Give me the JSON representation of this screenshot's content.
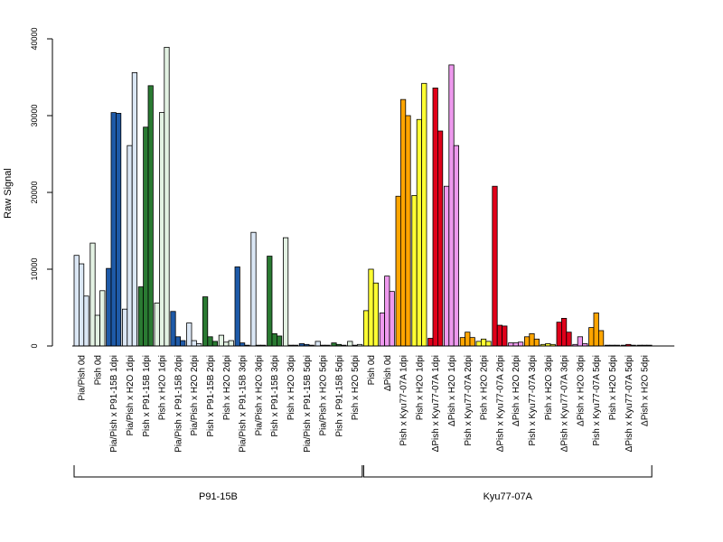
{
  "chart_data": {
    "type": "bar",
    "ylabel": "Raw Signal",
    "ylim": [
      0,
      40000
    ],
    "yticks": [
      0,
      10000,
      20000,
      30000,
      40000
    ],
    "grid": false,
    "groups": [
      {
        "name": "P91-15B",
        "categories": [
          {
            "label": "Pia/Pish 0d",
            "color": "#dbe7f5",
            "values": [
              11800,
              10700,
              6500
            ]
          },
          {
            "label": "Pish 0d",
            "color": "#e3f2e3",
            "values": [
              13400,
              4000,
              7200
            ]
          },
          {
            "label": "Pia/Pish x P91-15B 1dpi",
            "color": "#1e5aa8",
            "values": [
              10100,
              30400,
              30300
            ]
          },
          {
            "label": "Pia/Pish x H2O 1dpi",
            "color": "#dbe7f5",
            "values": [
              4800,
              26100,
              35600
            ]
          },
          {
            "label": "Pish x P91-15B 1dpi",
            "color": "#2a7a32",
            "values": [
              7700,
              28500,
              33900
            ]
          },
          {
            "label": "Pish x H2O 1dpi",
            "color": "#e3f2e3",
            "values": [
              5600,
              30400,
              38900
            ]
          },
          {
            "label": "Pia/Pish x P91-15B 2dpi",
            "color": "#1e5aa8",
            "values": [
              4500,
              1200,
              700
            ]
          },
          {
            "label": "Pia/Pish x H2O 2dpi",
            "color": "#dbe7f5",
            "values": [
              3000,
              700,
              300
            ]
          },
          {
            "label": "Pish x P91-15B 2dpi",
            "color": "#2a7a32",
            "values": [
              6400,
              1200,
              600
            ]
          },
          {
            "label": "Pish x H2O 2dpi",
            "color": "#e3f2e3",
            "values": [
              1400,
              500,
              700
            ]
          },
          {
            "label": "Pia/Pish x P91-15B 3dpi",
            "color": "#1e5aa8",
            "values": [
              10300,
              400,
              100
            ]
          },
          {
            "label": "Pia/Pish x H2O 3dpi",
            "color": "#dbe7f5",
            "values": [
              14800,
              100,
              100
            ]
          },
          {
            "label": "Pish x P91-15B 3dpi",
            "color": "#2a7a32",
            "values": [
              11700,
              1600,
              1300
            ]
          },
          {
            "label": "Pish x H2O 3dpi",
            "color": "#e3f2e3",
            "values": [
              14100,
              100,
              100
            ]
          },
          {
            "label": "Pia/Pish x P91-15B 5dpi",
            "color": "#1e5aa8",
            "values": [
              300,
              200,
              100
            ]
          },
          {
            "label": "Pia/Pish x H2O 5dpi",
            "color": "#dbe7f5",
            "values": [
              600,
              100,
              100
            ]
          },
          {
            "label": "Pish x P91-15B 5dpi",
            "color": "#2a7a32",
            "values": [
              400,
              200,
              100
            ]
          },
          {
            "label": "Pish x H2O 5dpi",
            "color": "#e3f2e3",
            "values": [
              600,
              100,
              200
            ]
          }
        ]
      },
      {
        "name": "Kyu77-07A",
        "categories": [
          {
            "label": "Pish 0d",
            "color": "#ffff33",
            "values": [
              4600,
              10000,
              8200
            ]
          },
          {
            "label": "ΔPish 0d",
            "color": "#ee99ee",
            "values": [
              4300,
              9100,
              7100
            ]
          },
          {
            "label": "Pish x Kyu77-07A 1dpi",
            "color": "#ffa500",
            "values": [
              19500,
              32100,
              30000
            ]
          },
          {
            "label": "Pish x H2O 1dpi",
            "color": "#ffff33",
            "values": [
              19600,
              29500,
              34200
            ]
          },
          {
            "label": "ΔPish x Kyu77-07A 1dpi",
            "color": "#e0001a",
            "values": [
              1000,
              33600,
              28000
            ]
          },
          {
            "label": "ΔPish x H2O 1dpi",
            "color": "#ee99ee",
            "values": [
              20800,
              36600,
              26100
            ]
          },
          {
            "label": "Pish x Kyu77-07A 2dpi",
            "color": "#ffa500",
            "values": [
              1100,
              1800,
              1100
            ]
          },
          {
            "label": "Pish x H2O 2dpi",
            "color": "#ffff33",
            "values": [
              600,
              900,
              600
            ]
          },
          {
            "label": "ΔPish x Kyu77-07A 2dpi",
            "color": "#e0001a",
            "values": [
              20800,
              2700,
              2600
            ]
          },
          {
            "label": "ΔPish x H2O 2dpi",
            "color": "#ee99ee",
            "values": [
              400,
              400,
              500
            ]
          },
          {
            "label": "Pish x Kyu77-07A 3dpi",
            "color": "#ffa500",
            "values": [
              1200,
              1600,
              900
            ]
          },
          {
            "label": "Pish x H2O 3dpi",
            "color": "#ffff33",
            "values": [
              200,
              300,
              200
            ]
          },
          {
            "label": "ΔPish x Kyu77-07A 3dpi",
            "color": "#e0001a",
            "values": [
              3100,
              3600,
              1800
            ]
          },
          {
            "label": "ΔPish x H2O 3dpi",
            "color": "#ee99ee",
            "values": [
              200,
              1200,
              300
            ]
          },
          {
            "label": "Pish x Kyu77-07A 5dpi",
            "color": "#ffa500",
            "values": [
              2400,
              4300,
              2000
            ]
          },
          {
            "label": "Pish x H2O 5dpi",
            "color": "#ffff33",
            "values": [
              100,
              100,
              100
            ]
          },
          {
            "label": "ΔPish x Kyu77-07A 5dpi",
            "color": "#e0001a",
            "values": [
              100,
              200,
              100
            ]
          },
          {
            "label": "ΔPish x H2O 5dpi",
            "color": "#ee99ee",
            "values": [
              100,
              100,
              100
            ]
          }
        ]
      }
    ]
  }
}
